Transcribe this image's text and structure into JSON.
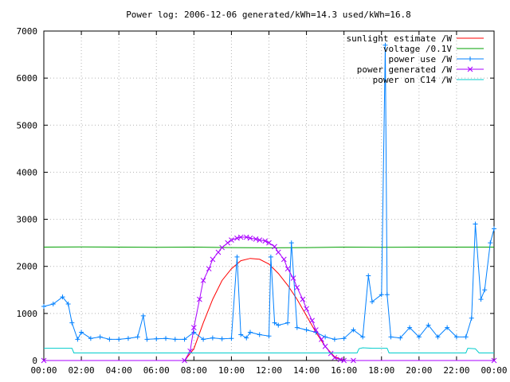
{
  "chart_data": {
    "type": "line",
    "title": "Power log: 2006-12-06 generated/kWh=14.3 used/kWh=16.8",
    "xlabel": "",
    "ylabel": "",
    "xlim": [
      0,
      24
    ],
    "ylim": [
      0,
      7000
    ],
    "grid": true,
    "legend_position": "top-right",
    "x_ticks": [
      0,
      2,
      4,
      6,
      8,
      10,
      12,
      14,
      16,
      18,
      20,
      22,
      24
    ],
    "x_tick_labels": [
      "00:00",
      "02:00",
      "04:00",
      "06:00",
      "08:00",
      "10:00",
      "12:00",
      "14:00",
      "16:00",
      "18:00",
      "20:00",
      "22:00",
      "00:00"
    ],
    "y_ticks": [
      0,
      1000,
      2000,
      3000,
      4000,
      5000,
      6000,
      7000
    ],
    "y_tick_labels": [
      "0",
      "1000",
      "2000",
      "3000",
      "4000",
      "5000",
      "6000",
      "7000"
    ],
    "series": [
      {
        "name": "sunlight estimate /W",
        "color": "#ff0000",
        "marker": "none",
        "x": [
          0,
          7.5,
          8.0,
          8.5,
          9.0,
          9.5,
          10.0,
          10.5,
          11.0,
          11.5,
          12.0,
          12.5,
          13.0,
          13.5,
          14.0,
          14.5,
          15.0,
          15.5,
          16.0,
          24
        ],
        "y": [
          0,
          0,
          250,
          800,
          1300,
          1700,
          1950,
          2120,
          2170,
          2150,
          2050,
          1850,
          1600,
          1300,
          950,
          600,
          300,
          80,
          0,
          0
        ]
      },
      {
        "name": "voltage /0.1V",
        "color": "#00a000",
        "marker": "none",
        "x": [
          0,
          2,
          4,
          6,
          8,
          10,
          12,
          14,
          16,
          18,
          20,
          22,
          24
        ],
        "y": [
          2410,
          2415,
          2410,
          2405,
          2410,
          2400,
          2395,
          2400,
          2410,
          2405,
          2410,
          2410,
          2410
        ]
      },
      {
        "name": "power use /W",
        "color": "#0080ff",
        "marker": "plus",
        "x": [
          0,
          0.5,
          1.0,
          1.3,
          1.5,
          1.8,
          2.0,
          2.5,
          3.0,
          3.5,
          4.0,
          4.5,
          5.0,
          5.3,
          5.5,
          6.0,
          6.5,
          7.0,
          7.5,
          8.0,
          8.5,
          9.0,
          9.5,
          10.0,
          10.3,
          10.5,
          10.8,
          11.0,
          11.5,
          12.0,
          12.1,
          12.3,
          12.5,
          13.0,
          13.2,
          13.5,
          14.0,
          14.5,
          15.0,
          15.5,
          16.0,
          16.5,
          17.0,
          17.3,
          17.5,
          18.0,
          18.2,
          18.3,
          18.5,
          19.0,
          19.5,
          20.0,
          20.5,
          21.0,
          21.5,
          22.0,
          22.5,
          22.8,
          23.0,
          23.3,
          23.5,
          23.8,
          24.0
        ],
        "y": [
          1150,
          1200,
          1350,
          1200,
          800,
          450,
          600,
          470,
          500,
          450,
          450,
          470,
          500,
          950,
          450,
          460,
          470,
          450,
          450,
          600,
          450,
          480,
          460,
          470,
          2200,
          550,
          480,
          600,
          550,
          520,
          2200,
          800,
          750,
          800,
          2500,
          700,
          650,
          600,
          500,
          450,
          470,
          650,
          500,
          1800,
          1250,
          1400,
          6700,
          1400,
          500,
          480,
          700,
          500,
          750,
          500,
          700,
          500,
          500,
          900,
          2900,
          1300,
          1500,
          2500,
          2800
        ]
      },
      {
        "name": "power generated /W",
        "color": "#aa00ff",
        "marker": "cross",
        "x": [
          0,
          7.5,
          7.8,
          8.0,
          8.3,
          8.5,
          8.8,
          9.0,
          9.3,
          9.5,
          9.8,
          10.0,
          10.3,
          10.5,
          10.8,
          11.0,
          11.3,
          11.5,
          11.8,
          12.0,
          12.3,
          12.5,
          12.8,
          13.0,
          13.3,
          13.5,
          13.8,
          14.0,
          14.3,
          14.5,
          14.8,
          15.0,
          15.3,
          15.5,
          15.8,
          16.0,
          16.5,
          24
        ],
        "y": [
          0,
          0,
          200,
          700,
          1300,
          1700,
          1950,
          2150,
          2300,
          2400,
          2500,
          2560,
          2600,
          2620,
          2620,
          2600,
          2580,
          2560,
          2540,
          2500,
          2420,
          2300,
          2150,
          1950,
          1750,
          1550,
          1300,
          1100,
          850,
          650,
          450,
          300,
          150,
          60,
          20,
          0,
          0,
          0
        ]
      },
      {
        "name": "power on C14 /W",
        "color": "#00cccc",
        "marker": "none",
        "x": [
          0,
          1.5,
          1.6,
          16.7,
          16.8,
          17.0,
          17.5,
          18.0,
          18.3,
          18.4,
          22.5,
          22.6,
          23.0,
          23.2,
          24.0
        ],
        "y": [
          260,
          260,
          160,
          160,
          250,
          270,
          260,
          260,
          260,
          160,
          160,
          260,
          250,
          160,
          160
        ]
      }
    ]
  }
}
